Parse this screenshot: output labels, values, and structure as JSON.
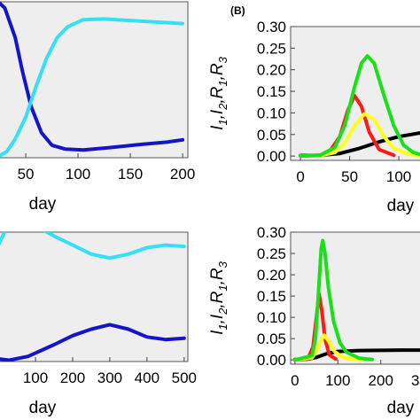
{
  "chart_data": [
    {
      "type": "line",
      "panel": "",
      "xlabel": "day",
      "ylabel": "",
      "xlim": [
        22,
        205
      ],
      "ylim": [
        0,
        1
      ],
      "x_ticks": [
        "50",
        "100",
        "150",
        "200"
      ],
      "x_tick_values": [
        50,
        100,
        150,
        200
      ],
      "y_ticks": [],
      "grid": false,
      "series": [
        {
          "color": "#1515c8",
          "points": [
            [
              22,
              1.01
            ],
            [
              30,
              0.96
            ],
            [
              40,
              0.77
            ],
            [
              47,
              0.55
            ],
            [
              55,
              0.33
            ],
            [
              65,
              0.16
            ],
            [
              75,
              0.08
            ],
            [
              88,
              0.055
            ],
            [
              105,
              0.05
            ],
            [
              130,
              0.065
            ],
            [
              160,
              0.085
            ],
            [
              185,
              0.1
            ],
            [
              200,
              0.115
            ]
          ]
        },
        {
          "color": "#35e0f5",
          "points": [
            [
              22,
              0.0
            ],
            [
              32,
              0.04
            ],
            [
              40,
              0.12
            ],
            [
              50,
              0.26
            ],
            [
              60,
              0.46
            ],
            [
              70,
              0.64
            ],
            [
              80,
              0.77
            ],
            [
              90,
              0.84
            ],
            [
              105,
              0.885
            ],
            [
              125,
              0.89
            ],
            [
              150,
              0.88
            ],
            [
              175,
              0.87
            ],
            [
              200,
              0.86
            ]
          ]
        }
      ]
    },
    {
      "type": "line",
      "panel": "(B)",
      "xlabel": "day",
      "ylabel": "I1,I2,R1,R3",
      "xlim": [
        -10,
        145
      ],
      "ylim": [
        -0.01,
        0.3
      ],
      "x_ticks": [
        "0",
        "50",
        "100"
      ],
      "x_tick_values": [
        0,
        50,
        100
      ],
      "y_ticks": [
        "0.00",
        "0.05",
        "0.10",
        "0.15",
        "0.20",
        "0.25",
        "0.30"
      ],
      "y_tick_values": [
        0,
        0.05,
        0.1,
        0.15,
        0.2,
        0.25,
        0.3
      ],
      "grid": false,
      "series": [
        {
          "color": "#000000",
          "points": [
            [
              0,
              0.001
            ],
            [
              20,
              0.002
            ],
            [
              40,
              0.006
            ],
            [
              60,
              0.018
            ],
            [
              80,
              0.033
            ],
            [
              100,
              0.045
            ],
            [
              120,
              0.053
            ],
            [
              145,
              0.057
            ]
          ]
        },
        {
          "color": "#ff1a1a",
          "points": [
            [
              0,
              0.0
            ],
            [
              20,
              0.002
            ],
            [
              30,
              0.012
            ],
            [
              40,
              0.045
            ],
            [
              48,
              0.105
            ],
            [
              55,
              0.14
            ],
            [
              62,
              0.115
            ],
            [
              70,
              0.055
            ],
            [
              80,
              0.015
            ],
            [
              95,
              0.002
            ]
          ]
        },
        {
          "color": "#ffff1a",
          "points": [
            [
              0,
              0.0
            ],
            [
              20,
              0.001
            ],
            [
              35,
              0.008
            ],
            [
              45,
              0.03
            ],
            [
              55,
              0.07
            ],
            [
              65,
              0.098
            ],
            [
              75,
              0.085
            ],
            [
              85,
              0.045
            ],
            [
              95,
              0.018
            ],
            [
              110,
              0.004
            ],
            [
              120,
              0.001
            ]
          ]
        },
        {
          "color": "#1ae01a",
          "points": [
            [
              0,
              0.0
            ],
            [
              20,
              0.002
            ],
            [
              35,
              0.02
            ],
            [
              45,
              0.07
            ],
            [
              55,
              0.16
            ],
            [
              62,
              0.215
            ],
            [
              68,
              0.232
            ],
            [
              75,
              0.215
            ],
            [
              85,
              0.14
            ],
            [
              95,
              0.07
            ],
            [
              105,
              0.025
            ],
            [
              115,
              0.008
            ],
            [
              125,
              0.002
            ]
          ]
        }
      ]
    },
    {
      "type": "line",
      "panel": "",
      "xlabel": "day",
      "ylabel": "",
      "xlim": [
        -5,
        510
      ],
      "ylim": [
        0,
        1
      ],
      "x_ticks": [
        "100",
        "200",
        "300",
        "400",
        "500"
      ],
      "x_tick_values": [
        100,
        200,
        300,
        400,
        500
      ],
      "y_ticks": [],
      "grid": false,
      "series": [
        {
          "color": "#35e0f5",
          "points": [
            [
              0,
              0.9
            ],
            [
              20,
              1.02
            ],
            [
              50,
              1.07
            ],
            [
              100,
              1.05
            ],
            [
              150,
              0.97
            ],
            [
              200,
              0.9
            ],
            [
              250,
              0.83
            ],
            [
              300,
              0.8
            ],
            [
              350,
              0.83
            ],
            [
              400,
              0.88
            ],
            [
              450,
              0.9
            ],
            [
              500,
              0.89
            ]
          ]
        },
        {
          "color": "#1515c8",
          "points": [
            [
              0,
              0.02
            ],
            [
              30,
              0.01
            ],
            [
              80,
              0.04
            ],
            [
              150,
              0.13
            ],
            [
              200,
              0.2
            ],
            [
              250,
              0.25
            ],
            [
              300,
              0.285
            ],
            [
              350,
              0.25
            ],
            [
              400,
              0.19
            ],
            [
              450,
              0.17
            ],
            [
              500,
              0.18
            ]
          ]
        }
      ]
    },
    {
      "type": "line",
      "panel": "",
      "xlabel": "day",
      "ylabel": "I1,I2,R1,R3",
      "xlim": [
        -10,
        345
      ],
      "ylim": [
        -0.01,
        0.3
      ],
      "x_ticks": [
        "0",
        "100",
        "200",
        "300"
      ],
      "x_tick_values": [
        0,
        100,
        200,
        300
      ],
      "y_ticks": [
        "0.00",
        "0.05",
        "0.10",
        "0.15",
        "0.20",
        "0.25",
        "0.30"
      ],
      "y_tick_values": [
        0,
        0.05,
        0.1,
        0.15,
        0.2,
        0.25,
        0.3
      ],
      "grid": false,
      "series": [
        {
          "color": "#000000",
          "points": [
            [
              0,
              0.001
            ],
            [
              30,
              0.002
            ],
            [
              50,
              0.006
            ],
            [
              75,
              0.015
            ],
            [
              100,
              0.02
            ],
            [
              150,
              0.022
            ],
            [
              250,
              0.023
            ],
            [
              345,
              0.023
            ]
          ]
        },
        {
          "color": "#ff1a1a",
          "points": [
            [
              0,
              0.0
            ],
            [
              30,
              0.002
            ],
            [
              42,
              0.03
            ],
            [
              50,
              0.1
            ],
            [
              56,
              0.155
            ],
            [
              62,
              0.12
            ],
            [
              70,
              0.05
            ],
            [
              80,
              0.012
            ],
            [
              95,
              0.002
            ]
          ]
        },
        {
          "color": "#ffff1a",
          "points": [
            [
              0,
              0.0
            ],
            [
              40,
              0.005
            ],
            [
              50,
              0.02
            ],
            [
              60,
              0.045
            ],
            [
              68,
              0.058
            ],
            [
              78,
              0.045
            ],
            [
              92,
              0.02
            ],
            [
              110,
              0.007
            ],
            [
              130,
              0.002
            ],
            [
              160,
              0.0
            ]
          ]
        },
        {
          "color": "#1ae01a",
          "points": [
            [
              0,
              0.0
            ],
            [
              40,
              0.01
            ],
            [
              48,
              0.05
            ],
            [
              55,
              0.16
            ],
            [
              61,
              0.26
            ],
            [
              65,
              0.28
            ],
            [
              70,
              0.25
            ],
            [
              78,
              0.17
            ],
            [
              90,
              0.09
            ],
            [
              105,
              0.04
            ],
            [
              120,
              0.018
            ],
            [
              150,
              0.004
            ],
            [
              180,
              0.001
            ]
          ]
        }
      ]
    }
  ]
}
